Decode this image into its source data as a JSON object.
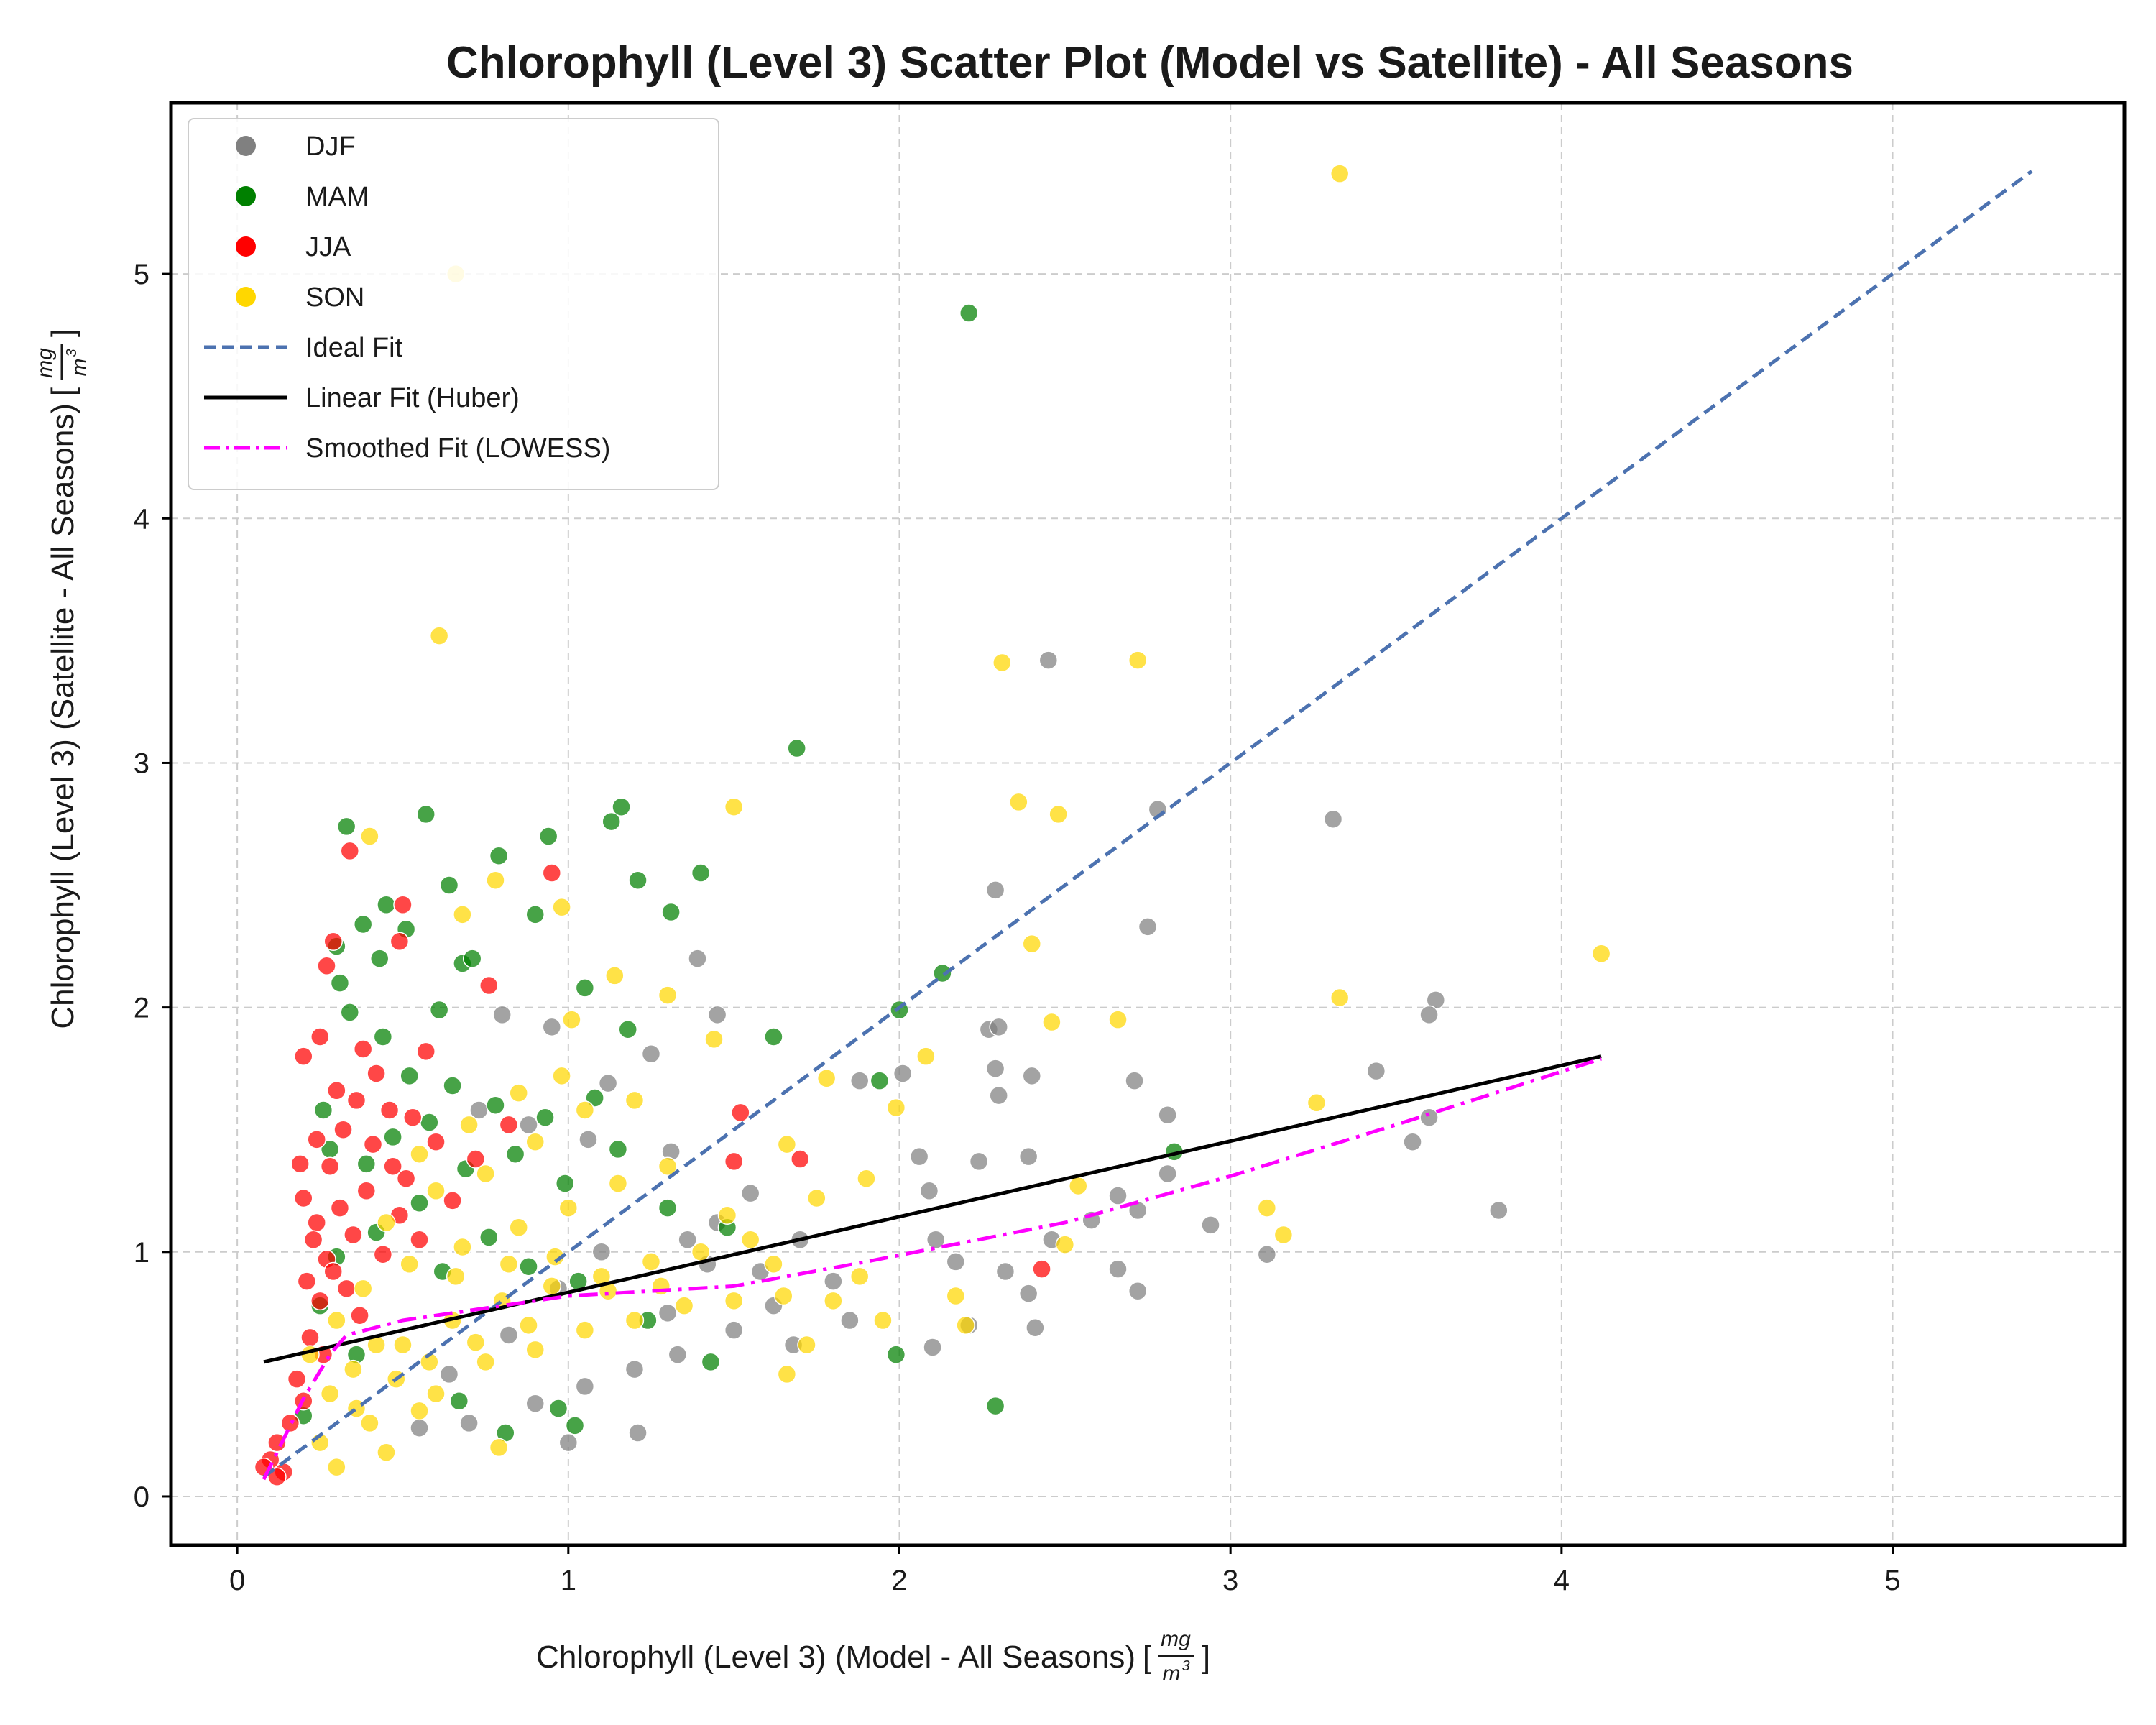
{
  "chart_data": {
    "type": "scatter",
    "title": "Chlorophyll (Level 3) Scatter Plot (Model vs Satellite) - All Seasons",
    "xlabel": "Chlorophyll (Level 3) (Model - All Seasons)",
    "ylabel": "Chlorophyll (Level 3) (Satellite - All Seasons)",
    "unit": {
      "numerator": "mg",
      "denominator": "m",
      "exponent": "3"
    },
    "xlim": [
      -0.2,
      5.7
    ],
    "ylim": [
      -0.2,
      5.7
    ],
    "xticks": [
      "0",
      "1",
      "2",
      "3",
      "4",
      "5"
    ],
    "yticks": [
      "0",
      "1",
      "2",
      "3",
      "4",
      "5"
    ],
    "grid": true,
    "legend_position": "top-left",
    "colors": {
      "DJF": "#808080",
      "MAM": "#008000",
      "JJA": "#ff0000",
      "SON": "#ffd700",
      "ideal": "#4c72b0",
      "huber": "#000000",
      "lowess": "#ff00ff"
    },
    "legend": [
      {
        "label": "DJF",
        "kind": "marker",
        "color": "#808080"
      },
      {
        "label": "MAM",
        "kind": "marker",
        "color": "#008000"
      },
      {
        "label": "JJA",
        "kind": "marker",
        "color": "#ff0000"
      },
      {
        "label": "SON",
        "kind": "marker",
        "color": "#ffd700"
      },
      {
        "label": "Ideal Fit",
        "kind": "dashed",
        "color": "#4c72b0"
      },
      {
        "label": "Linear Fit (Huber)",
        "kind": "solid",
        "color": "#000000"
      },
      {
        "label": "Smoothed Fit (LOWESS)",
        "kind": "dashdot",
        "color": "#ff00ff"
      }
    ],
    "lines": {
      "ideal": {
        "x": [
          0.08,
          5.42
        ],
        "y": [
          0.08,
          5.42
        ]
      },
      "huber": {
        "x": [
          0.08,
          4.12
        ],
        "y": [
          0.55,
          1.8
        ]
      },
      "lowess": {
        "x": [
          0.08,
          0.2,
          0.28,
          0.33,
          0.5,
          0.8,
          1.0,
          1.5,
          1.9,
          2.5,
          3.0,
          3.5,
          4.12
        ],
        "y": [
          0.07,
          0.4,
          0.58,
          0.66,
          0.72,
          0.78,
          0.82,
          0.86,
          0.96,
          1.12,
          1.31,
          1.52,
          1.79
        ]
      }
    },
    "series": [
      {
        "name": "DJF",
        "points": [
          [
            2.45,
            3.42
          ],
          [
            2.78,
            2.81
          ],
          [
            3.31,
            2.77
          ],
          [
            2.29,
            2.48
          ],
          [
            2.75,
            2.33
          ],
          [
            1.39,
            2.2
          ],
          [
            3.62,
            2.03
          ],
          [
            1.45,
            1.97
          ],
          [
            3.6,
            1.97
          ],
          [
            2.27,
            1.91
          ],
          [
            2.3,
            1.92
          ],
          [
            2.01,
            1.73
          ],
          [
            2.29,
            1.75
          ],
          [
            2.4,
            1.72
          ],
          [
            2.71,
            1.7
          ],
          [
            3.44,
            1.74
          ],
          [
            1.88,
            1.7
          ],
          [
            2.3,
            1.64
          ],
          [
            2.81,
            1.56
          ],
          [
            3.6,
            1.55
          ],
          [
            3.55,
            1.45
          ],
          [
            2.39,
            1.39
          ],
          [
            2.06,
            1.39
          ],
          [
            2.81,
            1.32
          ],
          [
            2.24,
            1.37
          ],
          [
            2.09,
            1.25
          ],
          [
            2.66,
            1.23
          ],
          [
            3.81,
            1.17
          ],
          [
            2.94,
            1.11
          ],
          [
            2.58,
            1.13
          ],
          [
            2.72,
            1.17
          ],
          [
            2.46,
            1.05
          ],
          [
            2.11,
            1.05
          ],
          [
            3.11,
            0.99
          ],
          [
            2.66,
            0.93
          ],
          [
            2.32,
            0.92
          ],
          [
            2.17,
            0.96
          ],
          [
            2.72,
            0.84
          ],
          [
            2.39,
            0.83
          ],
          [
            2.41,
            0.69
          ],
          [
            2.21,
            0.7
          ],
          [
            2.1,
            0.61
          ],
          [
            1.21,
            0.26
          ],
          [
            1.0,
            0.22
          ],
          [
            0.8,
            1.97
          ],
          [
            0.95,
            1.92
          ],
          [
            1.25,
            1.81
          ],
          [
            1.12,
            1.69
          ],
          [
            0.73,
            1.58
          ],
          [
            0.88,
            1.52
          ],
          [
            1.06,
            1.46
          ],
          [
            1.31,
            1.41
          ],
          [
            1.55,
            1.24
          ],
          [
            1.7,
            1.05
          ],
          [
            1.42,
            0.95
          ],
          [
            1.62,
            0.78
          ],
          [
            1.8,
            0.88
          ],
          [
            1.5,
            0.68
          ],
          [
            1.33,
            0.58
          ],
          [
            1.2,
            0.52
          ],
          [
            1.05,
            0.45
          ],
          [
            0.9,
            0.38
          ],
          [
            0.7,
            0.3
          ],
          [
            0.55,
            0.28
          ],
          [
            1.45,
            1.12
          ],
          [
            1.1,
            1.0
          ],
          [
            0.97,
            0.85
          ],
          [
            1.3,
            0.75
          ],
          [
            1.68,
            0.62
          ],
          [
            1.85,
            0.72
          ],
          [
            1.58,
            0.92
          ],
          [
            1.36,
            1.05
          ],
          [
            0.82,
            0.66
          ],
          [
            0.64,
            0.5
          ]
        ]
      },
      {
        "name": "MAM",
        "points": [
          [
            2.21,
            4.84
          ],
          [
            1.69,
            3.06
          ],
          [
            0.57,
            2.79
          ],
          [
            1.16,
            2.82
          ],
          [
            1.13,
            2.76
          ],
          [
            0.33,
            2.74
          ],
          [
            0.94,
            2.7
          ],
          [
            0.64,
            2.5
          ],
          [
            0.79,
            2.62
          ],
          [
            1.4,
            2.55
          ],
          [
            0.9,
            2.38
          ],
          [
            1.21,
            2.52
          ],
          [
            1.31,
            2.39
          ],
          [
            0.45,
            2.42
          ],
          [
            0.38,
            2.34
          ],
          [
            0.51,
            2.32
          ],
          [
            0.3,
            2.25
          ],
          [
            0.43,
            2.2
          ],
          [
            0.68,
            2.18
          ],
          [
            0.71,
            2.2
          ],
          [
            0.61,
            1.99
          ],
          [
            1.05,
            2.08
          ],
          [
            1.18,
            1.91
          ],
          [
            2.13,
            2.14
          ],
          [
            2.0,
            1.99
          ],
          [
            1.62,
            1.88
          ],
          [
            1.94,
            1.7
          ],
          [
            2.83,
            1.41
          ],
          [
            1.99,
            0.58
          ],
          [
            2.29,
            0.37
          ],
          [
            0.31,
            2.1
          ],
          [
            0.34,
            1.98
          ],
          [
            0.44,
            1.88
          ],
          [
            0.26,
            1.58
          ],
          [
            0.52,
            1.72
          ],
          [
            0.65,
            1.68
          ],
          [
            0.78,
            1.6
          ],
          [
            0.93,
            1.55
          ],
          [
            1.08,
            1.63
          ],
          [
            0.28,
            1.42
          ],
          [
            0.39,
            1.36
          ],
          [
            0.47,
            1.47
          ],
          [
            0.58,
            1.53
          ],
          [
            0.69,
            1.34
          ],
          [
            0.84,
            1.4
          ],
          [
            0.99,
            1.28
          ],
          [
            1.15,
            1.42
          ],
          [
            1.3,
            1.18
          ],
          [
            1.48,
            1.1
          ],
          [
            0.55,
            1.2
          ],
          [
            0.42,
            1.08
          ],
          [
            0.3,
            0.98
          ],
          [
            0.25,
            0.78
          ],
          [
            0.62,
            0.92
          ],
          [
            0.76,
            1.06
          ],
          [
            0.88,
            0.94
          ],
          [
            1.03,
            0.88
          ],
          [
            1.24,
            0.72
          ],
          [
            1.43,
            0.55
          ],
          [
            0.97,
            0.36
          ],
          [
            1.02,
            0.29
          ],
          [
            0.81,
            0.26
          ],
          [
            0.67,
            0.39
          ],
          [
            0.36,
            0.58
          ],
          [
            0.2,
            0.33
          ]
        ]
      },
      {
        "name": "JJA",
        "points": [
          [
            0.34,
            2.64
          ],
          [
            0.95,
            2.55
          ],
          [
            0.29,
            2.27
          ],
          [
            0.49,
            2.27
          ],
          [
            0.5,
            2.42
          ],
          [
            0.27,
            2.17
          ],
          [
            0.25,
            1.88
          ],
          [
            0.38,
            1.83
          ],
          [
            0.19,
            1.36
          ],
          [
            0.2,
            1.8
          ],
          [
            0.57,
            1.82
          ],
          [
            0.76,
            2.09
          ],
          [
            1.5,
            1.37
          ],
          [
            1.52,
            1.57
          ],
          [
            2.43,
            0.93
          ],
          [
            0.2,
            1.22
          ],
          [
            0.24,
            1.12
          ],
          [
            0.28,
            1.35
          ],
          [
            0.32,
            1.5
          ],
          [
            0.36,
            1.62
          ],
          [
            0.41,
            1.44
          ],
          [
            0.46,
            1.58
          ],
          [
            0.51,
            1.3
          ],
          [
            0.23,
            1.05
          ],
          [
            0.27,
            0.97
          ],
          [
            0.31,
            1.18
          ],
          [
            0.35,
            1.07
          ],
          [
            0.39,
            1.25
          ],
          [
            0.44,
            0.99
          ],
          [
            0.49,
            1.15
          ],
          [
            0.21,
            0.88
          ],
          [
            0.25,
            0.8
          ],
          [
            0.29,
            0.92
          ],
          [
            0.33,
            0.85
          ],
          [
            0.37,
            0.74
          ],
          [
            0.22,
            0.65
          ],
          [
            0.26,
            0.58
          ],
          [
            0.18,
            0.48
          ],
          [
            0.2,
            0.39
          ],
          [
            0.16,
            0.3
          ],
          [
            0.12,
            0.22
          ],
          [
            0.1,
            0.15
          ],
          [
            0.14,
            0.1
          ],
          [
            0.08,
            0.12
          ],
          [
            0.12,
            0.08
          ],
          [
            0.6,
            1.45
          ],
          [
            0.65,
            1.21
          ],
          [
            0.72,
            1.38
          ],
          [
            0.82,
            1.52
          ],
          [
            1.7,
            1.38
          ],
          [
            0.55,
            1.05
          ],
          [
            0.42,
            1.73
          ],
          [
            0.3,
            1.66
          ],
          [
            0.24,
            1.46
          ],
          [
            0.47,
            1.35
          ],
          [
            0.53,
            1.55
          ]
        ]
      },
      {
        "name": "SON",
        "points": [
          [
            3.33,
            5.41
          ],
          [
            0.66,
            5.0
          ],
          [
            0.61,
            3.52
          ],
          [
            2.31,
            3.41
          ],
          [
            2.72,
            3.42
          ],
          [
            1.5,
            2.82
          ],
          [
            2.36,
            2.84
          ],
          [
            2.48,
            2.79
          ],
          [
            0.4,
            2.7
          ],
          [
            0.78,
            2.52
          ],
          [
            0.98,
            2.41
          ],
          [
            0.68,
            2.38
          ],
          [
            2.4,
            2.26
          ],
          [
            4.12,
            2.22
          ],
          [
            1.14,
            2.13
          ],
          [
            1.3,
            2.05
          ],
          [
            3.33,
            2.04
          ],
          [
            2.46,
            1.94
          ],
          [
            2.66,
            1.95
          ],
          [
            2.08,
            1.8
          ],
          [
            1.44,
            1.87
          ],
          [
            1.01,
            1.95
          ],
          [
            1.99,
            1.59
          ],
          [
            3.26,
            1.61
          ],
          [
            1.78,
            1.71
          ],
          [
            1.66,
            1.44
          ],
          [
            2.54,
            1.27
          ],
          [
            3.11,
            1.18
          ],
          [
            3.16,
            1.07
          ],
          [
            2.5,
            1.03
          ],
          [
            2.17,
            0.82
          ],
          [
            2.2,
            0.7
          ],
          [
            1.66,
            0.5
          ],
          [
            0.79,
            0.2
          ],
          [
            0.55,
            0.35
          ],
          [
            0.45,
            0.18
          ],
          [
            0.3,
            0.12
          ],
          [
            0.25,
            0.22
          ],
          [
            0.4,
            0.3
          ],
          [
            0.6,
            0.42
          ],
          [
            0.75,
            0.55
          ],
          [
            0.9,
            0.6
          ],
          [
            1.05,
            0.68
          ],
          [
            1.2,
            0.72
          ],
          [
            1.35,
            0.78
          ],
          [
            1.5,
            0.8
          ],
          [
            1.65,
            0.82
          ],
          [
            1.8,
            0.8
          ],
          [
            1.95,
            0.72
          ],
          [
            0.35,
            0.52
          ],
          [
            0.5,
            0.62
          ],
          [
            0.65,
            0.72
          ],
          [
            0.8,
            0.8
          ],
          [
            0.95,
            0.86
          ],
          [
            1.1,
            0.9
          ],
          [
            1.25,
            0.96
          ],
          [
            1.4,
            1.0
          ],
          [
            1.55,
            1.05
          ],
          [
            0.38,
            0.85
          ],
          [
            0.52,
            0.95
          ],
          [
            0.68,
            1.02
          ],
          [
            0.85,
            1.1
          ],
          [
            1.0,
            1.18
          ],
          [
            1.15,
            1.28
          ],
          [
            1.3,
            1.35
          ],
          [
            0.45,
            1.12
          ],
          [
            0.6,
            1.25
          ],
          [
            0.75,
            1.32
          ],
          [
            0.9,
            1.45
          ],
          [
            1.05,
            1.58
          ],
          [
            0.55,
            1.4
          ],
          [
            0.7,
            1.52
          ],
          [
            0.85,
            1.65
          ],
          [
            0.3,
            0.72
          ],
          [
            0.28,
            0.42
          ],
          [
            0.22,
            0.58
          ],
          [
            1.72,
            0.62
          ],
          [
            1.88,
            0.9
          ],
          [
            1.62,
            0.95
          ],
          [
            1.48,
            1.15
          ],
          [
            0.98,
            1.72
          ],
          [
            1.2,
            1.62
          ],
          [
            1.75,
            1.22
          ],
          [
            1.9,
            1.3
          ],
          [
            0.66,
            0.9
          ],
          [
            0.82,
            0.95
          ],
          [
            0.96,
            0.98
          ],
          [
            1.12,
            0.84
          ],
          [
            1.28,
            0.86
          ],
          [
            0.42,
            0.62
          ],
          [
            0.36,
            0.36
          ],
          [
            0.48,
            0.48
          ],
          [
            0.58,
            0.55
          ],
          [
            0.72,
            0.63
          ],
          [
            0.88,
            0.7
          ]
        ]
      }
    ]
  }
}
